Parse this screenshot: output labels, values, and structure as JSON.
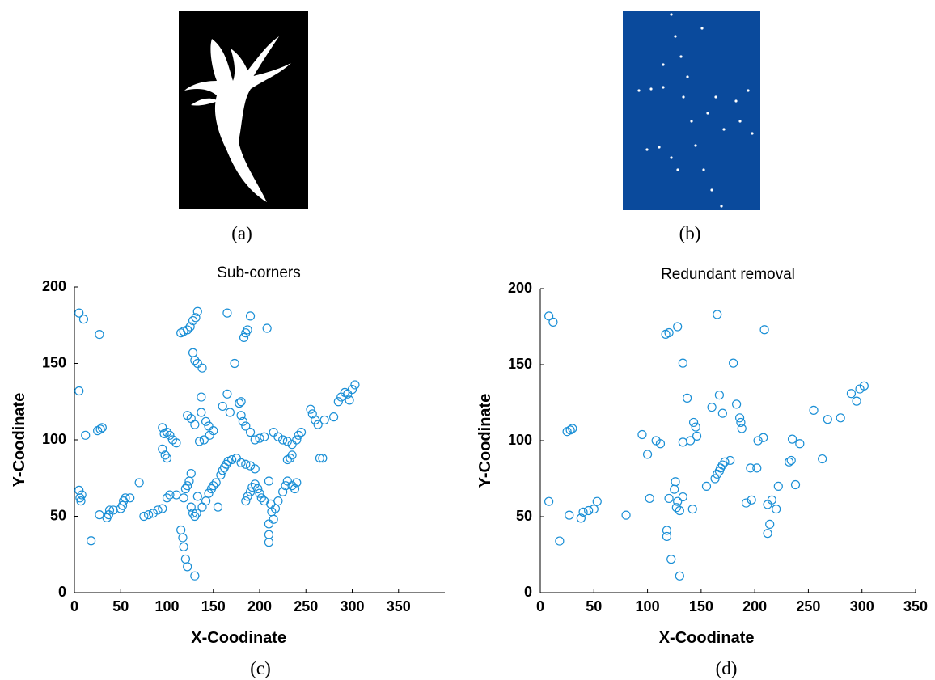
{
  "panels": [
    {
      "caption": "(a)"
    },
    {
      "caption": "(b)"
    }
  ],
  "chart_data": [
    {
      "type": "scatter",
      "title": "Sub-corners",
      "caption": "(c)",
      "xlabel": "X-Coodinate",
      "ylabel": "Y-Coodinate",
      "color": "#1a8fd6",
      "xlim": [
        0,
        400
      ],
      "xticks": [
        0,
        50,
        100,
        150,
        200,
        250,
        300,
        350
      ],
      "ylim": [
        0,
        200
      ],
      "yticks": [
        0,
        50,
        100,
        150,
        200
      ],
      "x": [
        5,
        10,
        5,
        27,
        5,
        6,
        8,
        7,
        12,
        25,
        28,
        30,
        27,
        18,
        35,
        37,
        38,
        42,
        50,
        52,
        53,
        55,
        60,
        70,
        75,
        80,
        85,
        90,
        95,
        100,
        103,
        110,
        95,
        97,
        100,
        103,
        106,
        110,
        95,
        98,
        100,
        115,
        118,
        122,
        125,
        128,
        131,
        133,
        128,
        130,
        133,
        138,
        115,
        117,
        118,
        120,
        122,
        130,
        118,
        120,
        122,
        124,
        126,
        126,
        128,
        130,
        132,
        133,
        122,
        126,
        130,
        135,
        137,
        137,
        140,
        142,
        145,
        146,
        150,
        138,
        142,
        145,
        148,
        150,
        153,
        155,
        160,
        165,
        165,
        168,
        158,
        160,
        162,
        164,
        166,
        170,
        175,
        180,
        185,
        190,
        195,
        173,
        178,
        180,
        182,
        185,
        180,
        183,
        185,
        187,
        190,
        185,
        187,
        190,
        192,
        195,
        198,
        200,
        202,
        205,
        190,
        195,
        200,
        205,
        208,
        210,
        212,
        213,
        210,
        210,
        210,
        215,
        217,
        220,
        225,
        228,
        230,
        235,
        238,
        240,
        230,
        233,
        235,
        215,
        220,
        225,
        230,
        235,
        240,
        242,
        245,
        255,
        257,
        260,
        263,
        265,
        268,
        270,
        280,
        285,
        288,
        292,
        295,
        300,
        303,
        297
      ],
      "values": [
        183,
        179,
        132,
        169,
        67,
        62,
        64,
        60,
        103,
        106,
        107,
        108,
        51,
        34,
        49,
        51,
        54,
        54,
        55,
        57,
        60,
        62,
        62,
        72,
        50,
        51,
        52,
        54,
        55,
        62,
        64,
        64,
        108,
        104,
        105,
        103,
        100,
        98,
        94,
        90,
        88,
        170,
        171,
        172,
        174,
        178,
        180,
        184,
        157,
        152,
        150,
        147,
        41,
        36,
        30,
        22,
        17,
        11,
        62,
        68,
        70,
        73,
        78,
        56,
        52,
        50,
        52,
        63,
        116,
        114,
        110,
        99,
        128,
        118,
        100,
        112,
        109,
        103,
        106,
        56,
        60,
        65,
        68,
        70,
        72,
        56,
        122,
        183,
        130,
        118,
        77,
        80,
        82,
        84,
        86,
        87,
        88,
        85,
        84,
        83,
        81,
        150,
        124,
        116,
        112,
        109,
        125,
        167,
        170,
        172,
        181,
        60,
        63,
        66,
        69,
        71,
        68,
        65,
        62,
        60,
        105,
        100,
        101,
        102,
        173,
        73,
        58,
        53,
        45,
        38,
        33,
        48,
        55,
        60,
        66,
        70,
        73,
        70,
        68,
        72,
        87,
        88,
        90,
        105,
        102,
        100,
        99,
        97,
        100,
        103,
        105,
        120,
        117,
        113,
        110,
        88,
        88,
        113,
        115,
        125,
        128,
        131,
        130,
        133,
        136,
        126
      ]
    },
    {
      "type": "scatter",
      "title": "Redundant removal",
      "caption": "(d)",
      "xlabel": "X-Coodinate",
      "ylabel": "Y-Coodinate",
      "color": "#1a8fd6",
      "xlim": [
        0,
        350
      ],
      "xticks": [
        0,
        50,
        100,
        150,
        200,
        250,
        300,
        350
      ],
      "ylim": [
        0,
        200
      ],
      "yticks": [
        0,
        50,
        100,
        150,
        200
      ],
      "x": [
        8,
        12,
        8,
        18,
        25,
        28,
        30,
        27,
        38,
        40,
        45,
        50,
        53,
        80,
        95,
        100,
        102,
        108,
        112,
        117,
        120,
        128,
        133,
        118,
        118,
        122,
        130,
        120,
        125,
        126,
        127,
        130,
        128,
        133,
        133,
        137,
        140,
        142,
        143,
        145,
        146,
        155,
        160,
        163,
        165,
        167,
        168,
        170,
        172,
        177,
        165,
        167,
        170,
        180,
        183,
        186,
        187,
        188,
        192,
        196,
        197,
        202,
        203,
        208,
        209,
        212,
        212,
        214,
        216,
        220,
        222,
        232,
        234,
        235,
        238,
        242,
        255,
        263,
        268,
        280,
        290,
        295,
        298,
        302
      ],
      "values": [
        182,
        178,
        60,
        34,
        106,
        107,
        108,
        51,
        49,
        53,
        54,
        55,
        60,
        51,
        104,
        91,
        62,
        100,
        98,
        170,
        171,
        175,
        151,
        41,
        37,
        22,
        11,
        62,
        68,
        73,
        56,
        54,
        60,
        63,
        99,
        128,
        100,
        55,
        112,
        109,
        103,
        70,
        122,
        75,
        78,
        80,
        82,
        84,
        86,
        87,
        183,
        130,
        118,
        151,
        124,
        115,
        112,
        108,
        59,
        82,
        61,
        82,
        100,
        102,
        173,
        58,
        39,
        45,
        61,
        55,
        70,
        86,
        87,
        101,
        71,
        98,
        120,
        88,
        114,
        115,
        131,
        126,
        134,
        136
      ]
    }
  ]
}
